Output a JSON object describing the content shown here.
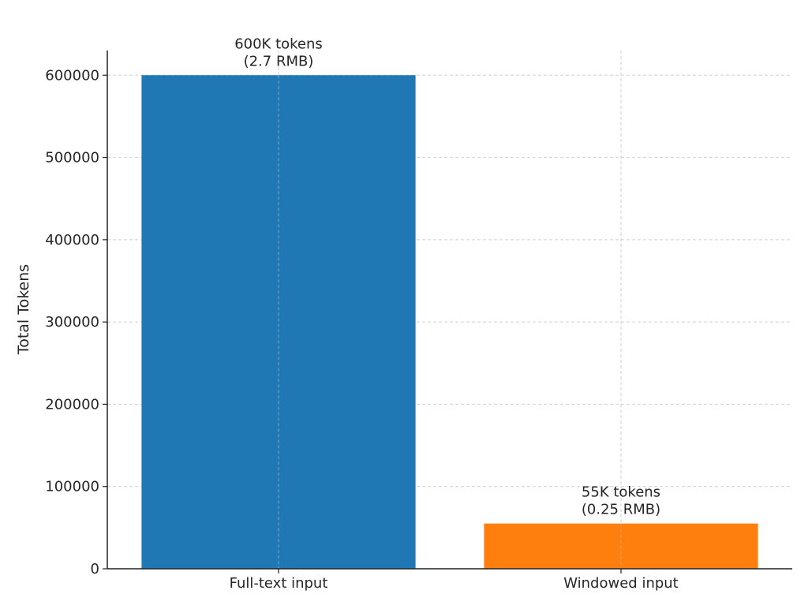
{
  "chart_data": {
    "type": "bar",
    "title": "",
    "xlabel": "",
    "ylabel": "Total Tokens",
    "categories": [
      "Full-text input",
      "Windowed input"
    ],
    "values": [
      600000,
      55000
    ],
    "ylim": [
      0,
      630000
    ],
    "yticks": [
      0,
      100000,
      200000,
      300000,
      400000,
      500000,
      600000
    ],
    "ytick_labels": [
      "0",
      "100000",
      "200000",
      "300000",
      "400000",
      "500000",
      "600000"
    ],
    "data_labels": [
      [
        "600K tokens",
        "(2.7 RMB)"
      ],
      [
        "55K tokens",
        "(0.25 RMB)"
      ]
    ],
    "colors": [
      "#1f77b4",
      "#ff7f0e"
    ],
    "grid": true,
    "legend": "none"
  }
}
